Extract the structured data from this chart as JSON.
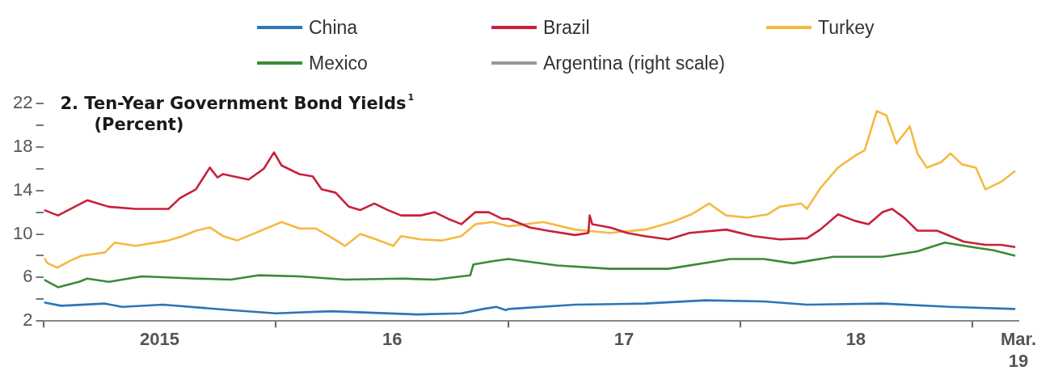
{
  "chart_data": {
    "type": "line",
    "title": "2. Ten-Year Government Bond Yields$^{1}$",
    "subtitle": "(Percent)",
    "legend": "top",
    "marker": "none",
    "line_style": "solid",
    "xlim": [
      "2015-01-01",
      "2019-03-15"
    ],
    "xticks": [
      {
        "value": "2015-01-01",
        "label": null
      },
      {
        "value": "2015-07-02",
        "label": "2015"
      },
      {
        "value": "2016-01-01",
        "label": null
      },
      {
        "value": "2016-07-02",
        "label": "16"
      },
      {
        "value": "2017-01-01",
        "label": null
      },
      {
        "value": "2017-07-02",
        "label": "17"
      },
      {
        "value": "2018-01-01",
        "label": null
      },
      {
        "value": "2018-07-02",
        "label": "18"
      },
      {
        "value": "2019-01-01",
        "label": null
      },
      {
        "value": "2019-03-15",
        "label": "Mar. 19"
      }
    ],
    "ylim": [
      2,
      22
    ],
    "yticks": [
      2,
      {
        "value": 4,
        "label": null
      },
      6,
      {
        "value": 8,
        "label": null
      },
      10,
      {
        "value": 12,
        "label": null
      },
      14,
      {
        "value": 16,
        "label": null
      },
      18,
      {
        "value": 20,
        "label": null
      },
      22
    ],
    "series": [
      {
        "name": "China",
        "color": "#2e75b6",
        "x": [
          "2015-01-01",
          "2015-01-28",
          "2015-04-07",
          "2015-05-04",
          "2015-07-07",
          "2015-10-22",
          "2016-01-01",
          "2016-03-28",
          "2016-08-10",
          "2016-10-19",
          "2016-11-22",
          "2016-12-13",
          "2016-12-28",
          "2017-01-01",
          "2017-04-16",
          "2017-08-04",
          "2017-11-07",
          "2018-02-07",
          "2018-04-16",
          "2018-08-13",
          "2018-11-28",
          "2019-03-10"
        ],
        "values": [
          3.7,
          3.4,
          3.6,
          3.3,
          3.5,
          3.0,
          2.7,
          2.9,
          2.6,
          2.7,
          3.1,
          3.3,
          3.0,
          3.1,
          3.5,
          3.6,
          3.9,
          3.8,
          3.5,
          3.6,
          3.3,
          3.1
        ]
      },
      {
        "name": "Brazil",
        "color": "#c8203a",
        "x": [
          "2015-01-01",
          "2015-01-23",
          "2015-02-25",
          "2015-03-10",
          "2015-04-13",
          "2015-05-25",
          "2015-07-16",
          "2015-08-03",
          "2015-08-28",
          "2015-09-19",
          "2015-10-01",
          "2015-10-10",
          "2015-11-19",
          "2015-12-13",
          "2015-12-29",
          "2016-01-10",
          "2016-02-07",
          "2016-02-28",
          "2016-03-13",
          "2016-04-04",
          "2016-04-25",
          "2016-05-13",
          "2016-06-04",
          "2016-06-25",
          "2016-07-16",
          "2016-08-16",
          "2016-09-07",
          "2016-09-28",
          "2016-10-19",
          "2016-11-10",
          "2016-12-01",
          "2016-12-22",
          "2017-01-01",
          "2017-02-04",
          "2017-03-04",
          "2017-04-16",
          "2017-05-07",
          "2017-05-09",
          "2017-05-13",
          "2017-06-10",
          "2017-07-07",
          "2017-08-04",
          "2017-09-10",
          "2017-10-13",
          "2017-12-10",
          "2018-01-22",
          "2018-03-04",
          "2018-04-16",
          "2018-05-07",
          "2018-06-04",
          "2018-07-01",
          "2018-07-22",
          "2018-08-13",
          "2018-08-28",
          "2018-09-16",
          "2018-10-07",
          "2018-11-07",
          "2018-11-28",
          "2018-12-19",
          "2019-01-22",
          "2019-02-16",
          "2019-03-10"
        ],
        "values": [
          12.2,
          11.7,
          12.7,
          13.1,
          12.5,
          12.3,
          12.3,
          13.3,
          14.1,
          16.1,
          15.2,
          15.5,
          15.0,
          16.0,
          17.5,
          16.3,
          15.5,
          15.3,
          14.1,
          13.8,
          12.5,
          12.2,
          12.8,
          12.2,
          11.7,
          11.7,
          12.0,
          11.4,
          10.9,
          12.0,
          12.0,
          11.4,
          11.4,
          10.6,
          10.3,
          9.9,
          10.1,
          11.7,
          10.9,
          10.6,
          10.1,
          9.8,
          9.5,
          10.1,
          10.4,
          9.8,
          9.5,
          9.6,
          10.4,
          11.8,
          11.2,
          10.9,
          12.0,
          12.3,
          11.5,
          10.3,
          10.3,
          9.8,
          9.3,
          9.0,
          9.0,
          8.8
        ]
      },
      {
        "name": "Turkey",
        "color": "#f5b942",
        "x": [
          "2015-01-01",
          "2015-01-07",
          "2015-01-22",
          "2015-02-10",
          "2015-03-01",
          "2015-04-07",
          "2015-04-22",
          "2015-05-25",
          "2015-07-16",
          "2015-08-07",
          "2015-08-28",
          "2015-09-19",
          "2015-10-10",
          "2015-11-01",
          "2015-12-04",
          "2016-01-10",
          "2016-02-07",
          "2016-03-04",
          "2016-03-28",
          "2016-04-19",
          "2016-05-13",
          "2016-06-07",
          "2016-07-04",
          "2016-07-16",
          "2016-08-16",
          "2016-09-19",
          "2016-10-19",
          "2016-11-10",
          "2016-12-07",
          "2017-01-01",
          "2017-02-25",
          "2017-04-16",
          "2017-06-10",
          "2017-08-04",
          "2017-09-16",
          "2017-10-16",
          "2017-11-13",
          "2017-12-10",
          "2018-01-13",
          "2018-02-13",
          "2018-03-04",
          "2018-04-07",
          "2018-04-16",
          "2018-05-07",
          "2018-06-04",
          "2018-07-01",
          "2018-07-16",
          "2018-08-04",
          "2018-08-19",
          "2018-09-04",
          "2018-09-25",
          "2018-10-07",
          "2018-10-22",
          "2018-11-13",
          "2018-11-28",
          "2018-12-16",
          "2019-01-07",
          "2019-01-22",
          "2019-02-16",
          "2019-03-10"
        ],
        "values": [
          7.8,
          7.3,
          6.9,
          7.5,
          8.0,
          8.3,
          9.2,
          8.9,
          9.4,
          9.8,
          10.3,
          10.6,
          9.8,
          9.4,
          10.2,
          11.1,
          10.5,
          10.5,
          9.7,
          8.9,
          10.0,
          9.5,
          8.9,
          9.8,
          9.5,
          9.4,
          9.8,
          10.9,
          11.1,
          10.7,
          11.1,
          10.4,
          10.1,
          10.4,
          11.1,
          11.8,
          12.8,
          11.7,
          11.5,
          11.8,
          12.5,
          12.8,
          12.3,
          14.2,
          16.1,
          17.2,
          17.7,
          21.3,
          20.9,
          18.3,
          19.9,
          17.4,
          16.1,
          16.6,
          17.4,
          16.4,
          16.1,
          14.1,
          14.8,
          15.8
        ]
      },
      {
        "name": "Mexico",
        "color": "#3a8a3a",
        "x": [
          "2015-01-01",
          "2015-01-23",
          "2015-02-25",
          "2015-03-10",
          "2015-04-13",
          "2015-06-04",
          "2015-08-28",
          "2015-10-22",
          "2015-12-04",
          "2016-02-07",
          "2016-04-19",
          "2016-07-16",
          "2016-09-07",
          "2016-10-19",
          "2016-11-02",
          "2016-11-07",
          "2016-12-07",
          "2017-01-01",
          "2017-03-19",
          "2017-06-10",
          "2017-09-10",
          "2017-12-16",
          "2018-02-07",
          "2018-03-25",
          "2018-05-28",
          "2018-08-13",
          "2018-10-07",
          "2018-11-19",
          "2019-01-01",
          "2019-02-04",
          "2019-03-10"
        ],
        "values": [
          5.8,
          5.1,
          5.6,
          5.9,
          5.6,
          6.1,
          5.9,
          5.8,
          6.2,
          6.1,
          5.8,
          5.9,
          5.8,
          6.1,
          6.2,
          7.2,
          7.5,
          7.7,
          7.1,
          6.8,
          6.8,
          7.7,
          7.7,
          7.3,
          7.9,
          7.9,
          8.4,
          9.2,
          8.8,
          8.5,
          8.0
        ]
      },
      {
        "name": "Argentina (right scale)",
        "color": "#999999"
      }
    ]
  }
}
